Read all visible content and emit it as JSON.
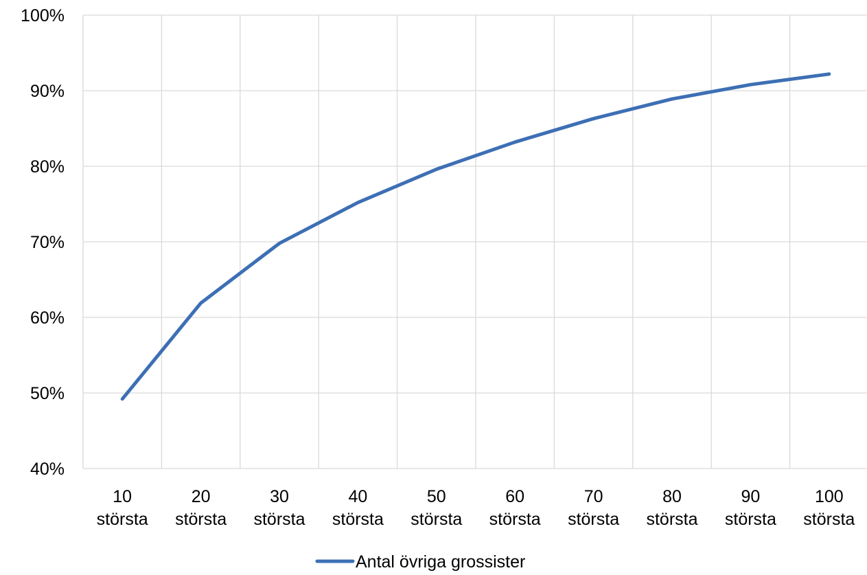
{
  "chart_data": {
    "type": "line",
    "title": "",
    "xlabel": "",
    "ylabel": "",
    "categories": [
      [
        "10",
        "största"
      ],
      [
        "20",
        "största"
      ],
      [
        "30",
        "största"
      ],
      [
        "40",
        "största"
      ],
      [
        "50",
        "största"
      ],
      [
        "60",
        "största"
      ],
      [
        "70",
        "största"
      ],
      [
        "80",
        "största"
      ],
      [
        "90",
        "största"
      ],
      [
        "100",
        "största"
      ]
    ],
    "series": [
      {
        "name": "Antal övriga grossister",
        "color": "#3d6fb4",
        "values": [
          49.2,
          61.9,
          69.8,
          75.2,
          79.6,
          83.2,
          86.3,
          88.9,
          90.8,
          92.2
        ]
      }
    ],
    "ylim": [
      40,
      100
    ],
    "yticks": [
      40,
      50,
      60,
      70,
      80,
      90,
      100
    ],
    "ytick_labels": [
      "40%",
      "50%",
      "60%",
      "70%",
      "80%",
      "90%",
      "100%"
    ],
    "grid": true,
    "legend_position": "bottom-center"
  }
}
